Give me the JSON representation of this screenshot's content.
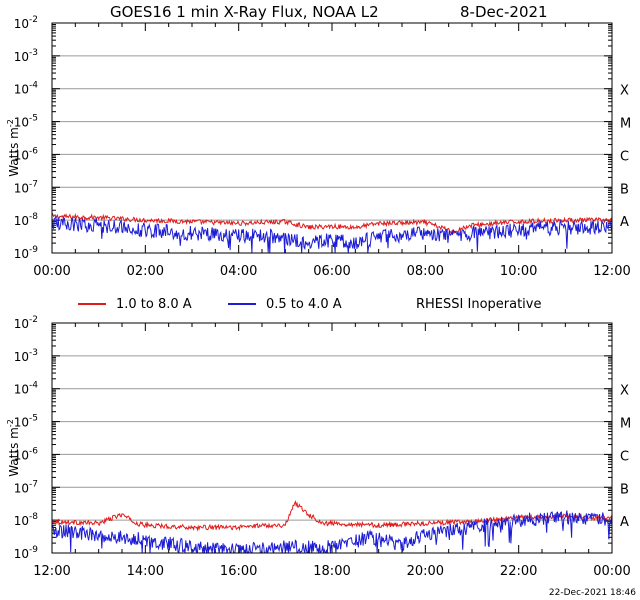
{
  "title": "GOES16 1 min X-Ray Flux, NOAA L2",
  "date": "8-Dec-2021",
  "footer": "22-Dec-2021 18:46",
  "legend": {
    "items": [
      {
        "label": "1.0 to 8.0 A",
        "color": "#e11b1b"
      },
      {
        "label": "0.5 to 4.0 A",
        "color": "#1c1cd6"
      }
    ],
    "note": "RHESSI Inoperative"
  },
  "colors": {
    "long": "#e11b1b",
    "short": "#1c1cd6",
    "grid": "#9a9a9a",
    "axis": "#000000"
  },
  "chart_data": [
    {
      "type": "line",
      "panel": "top",
      "ylabel": "Watts m",
      "ylabel_sup": "-2",
      "yscale": "log",
      "ylim": [
        1e-09,
        0.01
      ],
      "y_ticks": [
        {
          "base": "10",
          "exp": "-2"
        },
        {
          "base": "10",
          "exp": "-3"
        },
        {
          "base": "10",
          "exp": "-4"
        },
        {
          "base": "10",
          "exp": "-5"
        },
        {
          "base": "10",
          "exp": "-6"
        },
        {
          "base": "10",
          "exp": "-7"
        },
        {
          "base": "10",
          "exp": "-8"
        },
        {
          "base": "10",
          "exp": "-9"
        }
      ],
      "flare_classes": [
        "X",
        "M",
        "C",
        "B",
        "A"
      ],
      "x_ticks": [
        "00:00",
        "02:00",
        "04:00",
        "06:00",
        "08:00",
        "10:00",
        "12:00"
      ],
      "xlim_hours": [
        0,
        12
      ],
      "grid": true,
      "series": [
        {
          "name": "1.0 to 8.0 A",
          "hours": [
            0,
            1,
            2,
            3,
            4,
            5,
            5.5,
            6,
            6.5,
            7,
            8,
            8.6,
            9,
            10,
            11,
            12
          ],
          "values": [
            1.3e-08,
            1.2e-08,
            1e-08,
            9e-09,
            8e-09,
            9e-09,
            6e-09,
            6.5e-09,
            6e-09,
            8e-09,
            8.5e-09,
            4.5e-09,
            7e-09,
            9e-09,
            1e-08,
            1e-08
          ]
        },
        {
          "name": "0.5 to 4.0 A",
          "hours": [
            0,
            1,
            2,
            3,
            4,
            5,
            5.5,
            6,
            6.5,
            7,
            8,
            8.6,
            9,
            10,
            11,
            12
          ],
          "values": [
            8e-09,
            7e-09,
            5e-09,
            4e-09,
            3.5e-09,
            3e-09,
            2e-09,
            2.5e-09,
            2e-09,
            3e-09,
            4e-09,
            3e-09,
            4e-09,
            5e-09,
            6e-09,
            6e-09
          ]
        }
      ]
    },
    {
      "type": "line",
      "panel": "bottom",
      "ylabel": "Watts m",
      "ylabel_sup": "-2",
      "yscale": "log",
      "ylim": [
        1e-09,
        0.01
      ],
      "y_ticks": [
        {
          "base": "10",
          "exp": "-2"
        },
        {
          "base": "10",
          "exp": "-3"
        },
        {
          "base": "10",
          "exp": "-4"
        },
        {
          "base": "10",
          "exp": "-5"
        },
        {
          "base": "10",
          "exp": "-6"
        },
        {
          "base": "10",
          "exp": "-7"
        },
        {
          "base": "10",
          "exp": "-8"
        },
        {
          "base": "10",
          "exp": "-9"
        }
      ],
      "flare_classes": [
        "X",
        "M",
        "C",
        "B",
        "A"
      ],
      "x_ticks": [
        "12:00",
        "14:00",
        "16:00",
        "18:00",
        "20:00",
        "22:00",
        "00:00"
      ],
      "xlim_hours": [
        12,
        24
      ],
      "grid": true,
      "series": [
        {
          "name": "1.0 to 8.0 A",
          "hours": [
            12,
            13,
            13.5,
            13.8,
            14,
            15,
            16,
            16.5,
            17,
            17.2,
            17.5,
            17.8,
            18,
            19,
            20,
            21,
            22,
            23,
            24
          ],
          "values": [
            9e-09,
            8e-09,
            1.5e-08,
            8e-09,
            7e-09,
            6e-09,
            6e-09,
            7e-09,
            7e-09,
            3.5e-08,
            1.5e-08,
            8e-09,
            8e-09,
            7e-09,
            8e-09,
            9e-09,
            1.2e-08,
            1.3e-08,
            1.1e-08
          ]
        },
        {
          "name": "0.5 to 4.0 A",
          "hours": [
            12,
            13,
            14,
            15,
            16,
            17,
            18,
            18.8,
            19.5,
            20,
            21,
            22,
            23,
            24
          ],
          "values": [
            5e-09,
            3.5e-09,
            2.5e-09,
            1.5e-09,
            1.2e-09,
            1.5e-09,
            1.5e-09,
            3e-09,
            1.8e-09,
            4e-09,
            6e-09,
            1e-08,
            1.2e-08,
            1.1e-08
          ]
        }
      ]
    }
  ]
}
